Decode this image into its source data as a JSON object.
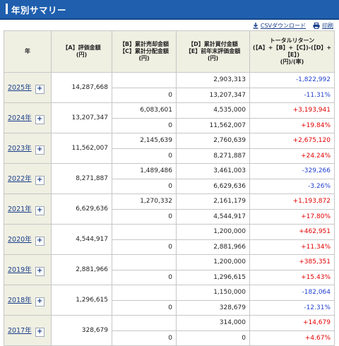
{
  "header": {
    "title": "年別サマリー"
  },
  "tools": {
    "csv_label": "CSVダウンロード",
    "print_label": "印刷"
  },
  "table": {
    "headers": {
      "year": "年",
      "a": [
        "【A】評価金額",
        "(円)"
      ],
      "bc": [
        "【B】累計売却金額",
        "【C】累計分配金額",
        "(円)"
      ],
      "de": [
        "【D】累計買付金額",
        "【E】前年末評価金額",
        "(円)"
      ],
      "ret": [
        "トータルリターン",
        "(【A】+【B】+【C】)-(【D】+",
        "【E】)",
        "(円)/(率)"
      ]
    },
    "expand_symbol": "+",
    "rows": [
      {
        "year": "2025年",
        "a": "14,287,668",
        "bc": [
          "",
          "0"
        ],
        "de": [
          "2,903,313",
          "13,207,347"
        ],
        "ret_yen": "-1,822,992",
        "ret_rate": "-11.31%",
        "sign": "neg"
      },
      {
        "year": "2024年",
        "a": "13,207,347",
        "bc": [
          "6,083,601",
          "0"
        ],
        "de": [
          "4,535,000",
          "11,562,007"
        ],
        "ret_yen": "+3,193,941",
        "ret_rate": "+19.84%",
        "sign": "pos"
      },
      {
        "year": "2023年",
        "a": "11,562,007",
        "bc": [
          "2,145,639",
          "0"
        ],
        "de": [
          "2,760,639",
          "8,271,887"
        ],
        "ret_yen": "+2,675,120",
        "ret_rate": "+24.24%",
        "sign": "pos"
      },
      {
        "year": "2022年",
        "a": "8,271,887",
        "bc": [
          "1,489,486",
          "0"
        ],
        "de": [
          "3,461,003",
          "6,629,636"
        ],
        "ret_yen": "-329,266",
        "ret_rate": "-3.26%",
        "sign": "neg"
      },
      {
        "year": "2021年",
        "a": "6,629,636",
        "bc": [
          "1,270,332",
          "0"
        ],
        "de": [
          "2,161,179",
          "4,544,917"
        ],
        "ret_yen": "+1,193,872",
        "ret_rate": "+17.80%",
        "sign": "pos"
      },
      {
        "year": "2020年",
        "a": "4,544,917",
        "bc": [
          "",
          "0"
        ],
        "de": [
          "1,200,000",
          "2,881,966"
        ],
        "ret_yen": "+462,951",
        "ret_rate": "+11.34%",
        "sign": "pos"
      },
      {
        "year": "2019年",
        "a": "2,881,966",
        "bc": [
          "",
          "0"
        ],
        "de": [
          "1,200,000",
          "1,296,615"
        ],
        "ret_yen": "+385,351",
        "ret_rate": "+15.43%",
        "sign": "pos"
      },
      {
        "year": "2018年",
        "a": "1,296,615",
        "bc": [
          "",
          "0"
        ],
        "de": [
          "1,150,000",
          "328,679"
        ],
        "ret_yen": "-182,064",
        "ret_rate": "-12.31%",
        "sign": "neg"
      },
      {
        "year": "2017年",
        "a": "328,679",
        "bc": [
          "",
          "0"
        ],
        "de": [
          "314,000",
          "0"
        ],
        "ret_yen": "+14,679",
        "ret_rate": "+4.67%",
        "sign": "pos"
      }
    ]
  },
  "colors": {
    "header_bg": "#1f5fae",
    "cell_bg": "#efefe2",
    "positive": "#e40000",
    "negative": "#1f3fcf",
    "link": "#1a3f8a"
  },
  "icons": {
    "csv": "download-icon",
    "print": "printer-icon"
  }
}
